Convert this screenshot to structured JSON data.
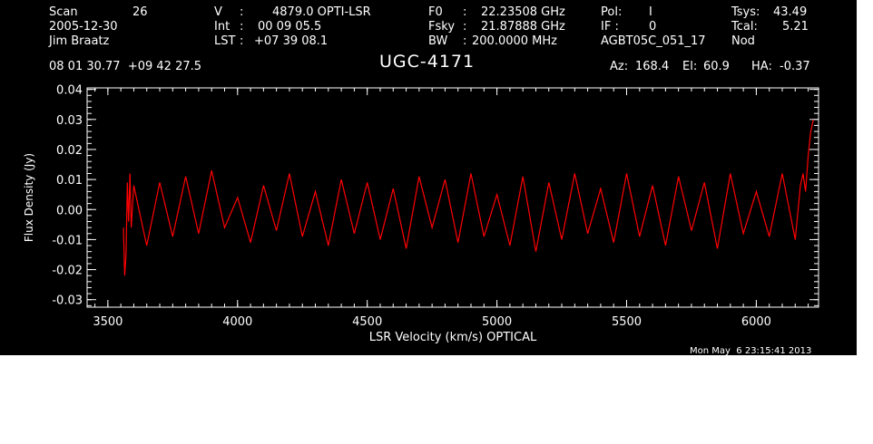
{
  "colors": {
    "background": "#000000",
    "foreground": "#ffffff",
    "spectrum": "#ff0000"
  },
  "header": {
    "scan_label": "Scan",
    "scan_value": "26",
    "date": "2005-12-30",
    "observer": "Jim Braatz",
    "v_label": "V",
    "v_sep": ":",
    "v_value": "4879.0 OPTI-LSR",
    "int_label": "Int",
    "int_sep": ":",
    "int_value": "00 09 05.5",
    "lst_label": "LST",
    "lst_sep": ":",
    "lst_value": "+07 39 08.1",
    "f0_label": "F0",
    "f0_sep": ":",
    "f0_value": "22.23508 GHz",
    "fsky_label": "Fsky",
    "fsky_sep": ":",
    "fsky_value": "21.87888 GHz",
    "bw_label": "BW",
    "bw_sep": ":",
    "bw_value": "200.0000 MHz",
    "pol_label": "Pol:",
    "pol_value": "I",
    "if_label": "IF :",
    "if_value": "0",
    "project": "AGBT05C_051_17",
    "tsys_label": "Tsys:",
    "tsys_value": "43.49",
    "tcal_label": "Tcal:",
    "tcal_value": "5.21",
    "mode": "Nod",
    "coordinates": "08 01 30.77  +09 42 27.5",
    "source": "UGC-4171",
    "az_label": "Az:",
    "az_value": "168.4",
    "el_label": "El:",
    "el_value": "60.9",
    "ha_label": "HA:",
    "ha_value": "-0.37"
  },
  "footer": {
    "timestamp": "Mon May  6 23:15:41 2013"
  },
  "chart_data": {
    "type": "line",
    "xlabel": "LSR Velocity (km/s) OPTICAL",
    "ylabel": "Flux Density (Jy)",
    "xlim": [
      3420,
      6240
    ],
    "ylim": [
      -0.0325,
      0.0405
    ],
    "xticks": [
      3500,
      4000,
      4500,
      5000,
      5500,
      6000
    ],
    "xtick_labels": [
      "3500",
      "4000",
      "4500",
      "5000",
      "5500",
      "6000"
    ],
    "yticks": [
      -0.03,
      -0.02,
      -0.01,
      0.0,
      0.01,
      0.02,
      0.03,
      0.04
    ],
    "ytick_labels": [
      "-0.03",
      "-0.02",
      "-0.01",
      "0.00",
      "0.01",
      "0.02",
      "0.03",
      "0.04"
    ],
    "grid": false,
    "series": [
      {
        "color": "#ff0000",
        "x": [
          3560,
          3565,
          3570,
          3575,
          3580,
          3585,
          3590,
          3600,
          3650,
          3700,
          3750,
          3800,
          3850,
          3900,
          3950,
          4000,
          4050,
          4100,
          4150,
          4200,
          4250,
          4300,
          4350,
          4400,
          4450,
          4500,
          4550,
          4600,
          4650,
          4700,
          4750,
          4800,
          4850,
          4900,
          4950,
          5000,
          5050,
          5100,
          5150,
          5200,
          5250,
          5300,
          5350,
          5400,
          5450,
          5500,
          5550,
          5600,
          5650,
          5700,
          5750,
          5800,
          5850,
          5900,
          5950,
          6000,
          6050,
          6100,
          6150,
          6170,
          6180,
          6190,
          6200,
          6210,
          6220
        ],
        "values": [
          -0.006,
          -0.022,
          -0.015,
          0.009,
          -0.004,
          0.012,
          -0.006,
          0.008,
          -0.012,
          0.009,
          -0.009,
          0.011,
          -0.008,
          0.013,
          -0.006,
          0.004,
          -0.011,
          0.008,
          -0.007,
          0.012,
          -0.009,
          0.006,
          -0.012,
          0.01,
          -0.008,
          0.009,
          -0.01,
          0.007,
          -0.013,
          0.011,
          -0.006,
          0.01,
          -0.011,
          0.012,
          -0.009,
          0.005,
          -0.012,
          0.011,
          -0.014,
          0.009,
          -0.01,
          0.012,
          -0.008,
          0.007,
          -0.011,
          0.012,
          -0.009,
          0.008,
          -0.012,
          0.011,
          -0.007,
          0.009,
          -0.013,
          0.012,
          -0.008,
          0.006,
          -0.009,
          0.012,
          -0.01,
          0.008,
          0.012,
          0.006,
          0.018,
          0.026,
          0.03
        ]
      }
    ]
  }
}
